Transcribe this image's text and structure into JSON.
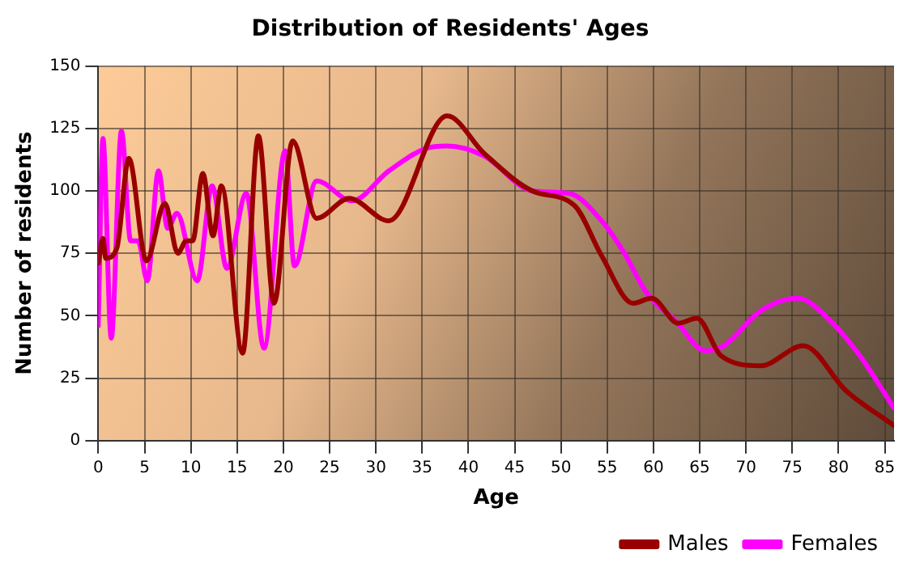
{
  "chart_data": {
    "type": "line",
    "title": "Distribution of Residents' Ages",
    "xlabel": "Age",
    "ylabel": "Number of residents",
    "xlim": [
      0,
      86
    ],
    "xticks": [
      0,
      5,
      10,
      15,
      20,
      25,
      30,
      35,
      40,
      45,
      50,
      55,
      60,
      65,
      70,
      75,
      80,
      85
    ],
    "ylim": [
      0,
      150
    ],
    "yticks": [
      0,
      25,
      50,
      75,
      100,
      125,
      150
    ],
    "grid": true,
    "legend": "bottom right",
    "marker": "none",
    "line_style": "solid",
    "series": [
      {
        "name": "Males",
        "color": "#990000",
        "x": [
          0,
          0.5,
          0.8,
          2,
          3.3,
          5.2,
          7.2,
          8.6,
          9.5,
          10.2,
          11.3,
          12.4,
          13.3,
          15.6,
          17.3,
          19,
          21,
          23.6,
          27.1,
          31.4,
          37.7,
          41.7,
          46.9,
          51.5,
          54.4,
          57.8,
          59.8,
          62.7,
          64.7,
          67.3,
          71.6,
          76.2,
          80.8,
          86
        ],
        "values": [
          71,
          81,
          73,
          77,
          113,
          72,
          95,
          75,
          80,
          80,
          107,
          82,
          102,
          35,
          122,
          55,
          120,
          89,
          97,
          88,
          130,
          115,
          100,
          94,
          74,
          55,
          57,
          47,
          49,
          34,
          30,
          38,
          20,
          6
        ]
      },
      {
        "name": "Females",
        "color": "#ff00ff",
        "x": [
          0,
          0.5,
          1.4,
          2.5,
          3.5,
          4.3,
          5.3,
          6.5,
          7.5,
          8.5,
          10.7,
          12.3,
          13.9,
          16,
          17.9,
          20.2,
          21.2,
          23.6,
          27.4,
          31.4,
          35.4,
          37.7,
          41.7,
          46.9,
          50.9,
          54.4,
          56.7,
          59.3,
          62.4,
          65.6,
          67.6,
          71.6,
          75.6,
          79.1,
          82.5,
          86
        ],
        "values": [
          46,
          121,
          41,
          124,
          80,
          80,
          64,
          108,
          85,
          91,
          64,
          102,
          69,
          99,
          37,
          116,
          70,
          104,
          96,
          108,
          117,
          118,
          114,
          100,
          99,
          88,
          76,
          59,
          48,
          36,
          38,
          52,
          57,
          48,
          33,
          13
        ]
      }
    ]
  }
}
